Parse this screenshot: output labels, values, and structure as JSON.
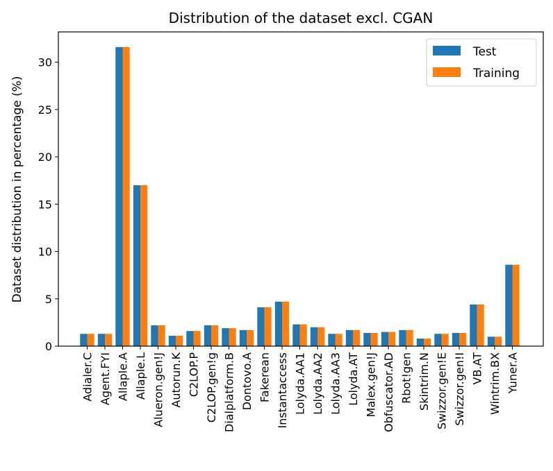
{
  "chart_data": {
    "type": "bar",
    "title": "Distribution of the dataset excl. CGAN",
    "xlabel": "",
    "ylabel": "Dataset distribution in percentage (%)",
    "ylim": [
      0,
      33.2
    ],
    "yticks": [
      0,
      5,
      10,
      15,
      20,
      25,
      30
    ],
    "grid": false,
    "legend_position": "top-right",
    "categories": [
      "Adialer.C",
      "Agent.FYI",
      "Allaple.A",
      "Allaple.L",
      "Alueron.gen!J",
      "Autorun.K",
      "C2LOP.P",
      "C2LOP.gen!g",
      "Dialplatform.B",
      "Dontovo.A",
      "Fakerean",
      "Instantaccess",
      "Lolyda.AA1",
      "Lolyda.AA2",
      "Lolyda.AA3",
      "Lolyda.AT",
      "Malex.gen!J",
      "Obfuscator.AD",
      "Rbot!gen",
      "Skintrim.N",
      "Swizzor.gen!E",
      "Swizzor.gen!I",
      "VB.AT",
      "Wintrim.BX",
      "Yuner.A"
    ],
    "series": [
      {
        "name": "Test",
        "color": "#1f77b4",
        "values": [
          1.3,
          1.3,
          31.6,
          17.0,
          2.2,
          1.1,
          1.6,
          2.2,
          1.9,
          1.7,
          4.1,
          4.7,
          2.3,
          2.0,
          1.3,
          1.7,
          1.4,
          1.5,
          1.7,
          0.8,
          1.3,
          1.4,
          4.4,
          1.0,
          8.6
        ]
      },
      {
        "name": "Training",
        "color": "#ff7f0e",
        "values": [
          1.3,
          1.3,
          31.6,
          17.0,
          2.2,
          1.1,
          1.6,
          2.2,
          1.9,
          1.7,
          4.1,
          4.7,
          2.3,
          2.0,
          1.3,
          1.7,
          1.4,
          1.5,
          1.7,
          0.8,
          1.3,
          1.4,
          4.4,
          1.0,
          8.6
        ]
      }
    ]
  }
}
